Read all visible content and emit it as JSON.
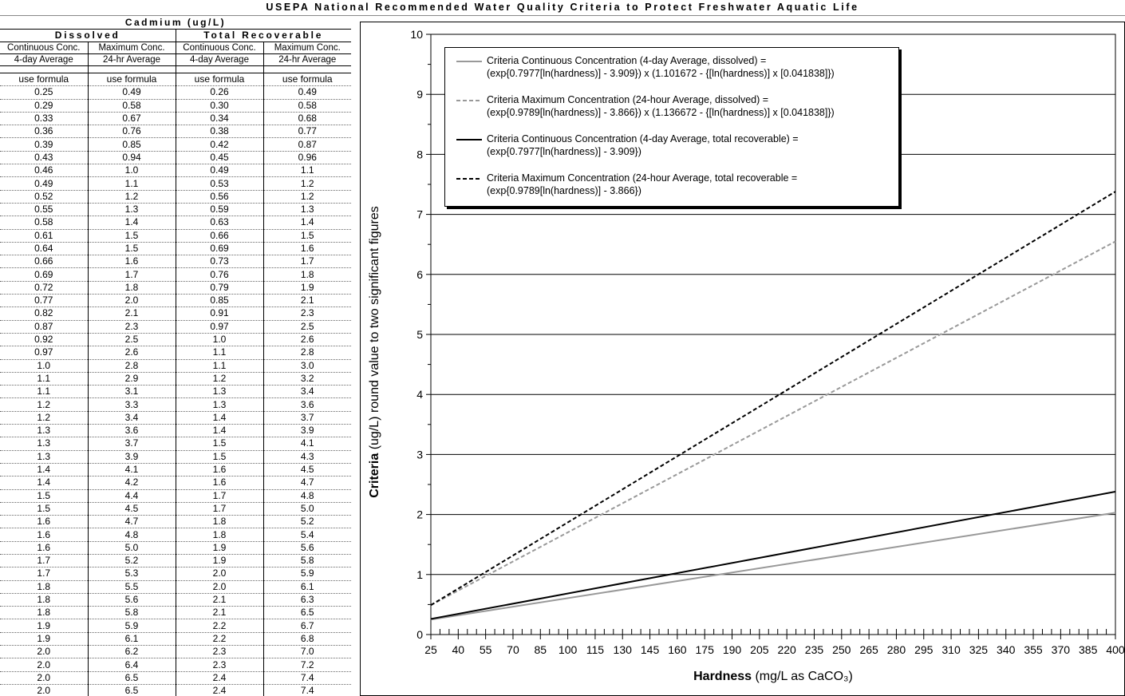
{
  "banner": "USEPA National Recommended Water Quality Criteria to Protect Freshwater Aquatic Life",
  "table": {
    "metal": "Cadmium (ug/L)",
    "groups": [
      "Dissolved",
      "Total Recoverable"
    ],
    "subheaders": [
      [
        "Continuous Conc.",
        "4-day Average"
      ],
      [
        "Maximum Conc.",
        "24-hr Average"
      ],
      [
        "Continuous Conc.",
        "4-day Average"
      ],
      [
        "Maximum Conc.",
        "24-hr Average"
      ]
    ],
    "rows": [
      [
        "use formula",
        "use formula",
        "use formula",
        "use formula"
      ],
      [
        "0.25",
        "0.49",
        "0.26",
        "0.49"
      ],
      [
        "0.29",
        "0.58",
        "0.30",
        "0.58"
      ],
      [
        "0.33",
        "0.67",
        "0.34",
        "0.68"
      ],
      [
        "0.36",
        "0.76",
        "0.38",
        "0.77"
      ],
      [
        "0.39",
        "0.85",
        "0.42",
        "0.87"
      ],
      [
        "0.43",
        "0.94",
        "0.45",
        "0.96"
      ],
      [
        "0.46",
        "1.0",
        "0.49",
        "1.1"
      ],
      [
        "0.49",
        "1.1",
        "0.53",
        "1.2"
      ],
      [
        "0.52",
        "1.2",
        "0.56",
        "1.2"
      ],
      [
        "0.55",
        "1.3",
        "0.59",
        "1.3"
      ],
      [
        "0.58",
        "1.4",
        "0.63",
        "1.4"
      ],
      [
        "0.61",
        "1.5",
        "0.66",
        "1.5"
      ],
      [
        "0.64",
        "1.5",
        "0.69",
        "1.6"
      ],
      [
        "0.66",
        "1.6",
        "0.73",
        "1.7"
      ],
      [
        "0.69",
        "1.7",
        "0.76",
        "1.8"
      ],
      [
        "0.72",
        "1.8",
        "0.79",
        "1.9"
      ],
      [
        "0.77",
        "2.0",
        "0.85",
        "2.1"
      ],
      [
        "0.82",
        "2.1",
        "0.91",
        "2.3"
      ],
      [
        "0.87",
        "2.3",
        "0.97",
        "2.5"
      ],
      [
        "0.92",
        "2.5",
        "1.0",
        "2.6"
      ],
      [
        "0.97",
        "2.6",
        "1.1",
        "2.8"
      ],
      [
        "1.0",
        "2.8",
        "1.1",
        "3.0"
      ],
      [
        "1.1",
        "2.9",
        "1.2",
        "3.2"
      ],
      [
        "1.1",
        "3.1",
        "1.3",
        "3.4"
      ],
      [
        "1.2",
        "3.3",
        "1.3",
        "3.6"
      ],
      [
        "1.2",
        "3.4",
        "1.4",
        "3.7"
      ],
      [
        "1.3",
        "3.6",
        "1.4",
        "3.9"
      ],
      [
        "1.3",
        "3.7",
        "1.5",
        "4.1"
      ],
      [
        "1.3",
        "3.9",
        "1.5",
        "4.3"
      ],
      [
        "1.4",
        "4.1",
        "1.6",
        "4.5"
      ],
      [
        "1.4",
        "4.2",
        "1.6",
        "4.7"
      ],
      [
        "1.5",
        "4.4",
        "1.7",
        "4.8"
      ],
      [
        "1.5",
        "4.5",
        "1.7",
        "5.0"
      ],
      [
        "1.6",
        "4.7",
        "1.8",
        "5.2"
      ],
      [
        "1.6",
        "4.8",
        "1.8",
        "5.4"
      ],
      [
        "1.6",
        "5.0",
        "1.9",
        "5.6"
      ],
      [
        "1.7",
        "5.2",
        "1.9",
        "5.8"
      ],
      [
        "1.7",
        "5.3",
        "2.0",
        "5.9"
      ],
      [
        "1.8",
        "5.5",
        "2.0",
        "6.1"
      ],
      [
        "1.8",
        "5.6",
        "2.1",
        "6.3"
      ],
      [
        "1.8",
        "5.8",
        "2.1",
        "6.5"
      ],
      [
        "1.9",
        "5.9",
        "2.2",
        "6.7"
      ],
      [
        "1.9",
        "6.1",
        "2.2",
        "6.8"
      ],
      [
        "2.0",
        "6.2",
        "2.3",
        "7.0"
      ],
      [
        "2.0",
        "6.4",
        "2.3",
        "7.2"
      ],
      [
        "2.0",
        "6.5",
        "2.4",
        "7.4"
      ],
      [
        "2.0",
        "6.5",
        "2.4",
        "7.4"
      ]
    ]
  },
  "chart_data": {
    "type": "line",
    "xlabel_bold": "Hardness",
    "xlabel_rest": " (mg/L as CaCO₃)",
    "ylabel_bold": "Criteria",
    "ylabel_rest": " (ug/L) round value to two significant figures",
    "xlim": [
      25,
      400
    ],
    "ylim": [
      0,
      10
    ],
    "x_ticks": [
      "25",
      "40",
      "55",
      "70",
      "85",
      "100",
      "115",
      "130",
      "145",
      "160",
      "175",
      "190",
      "205",
      "220",
      "235",
      "250",
      "265",
      "280",
      "295",
      "310",
      "325",
      "340",
      "355",
      "370",
      "385",
      "400"
    ],
    "y_ticks": [
      "0",
      "1",
      "2",
      "3",
      "4",
      "5",
      "6",
      "7",
      "8",
      "9",
      "10"
    ],
    "grid": "horizontal major",
    "legend_position": "top-left",
    "x": [
      25,
      400
    ],
    "series": [
      {
        "name": "Criteria Continuous Concentration (4-day Average, dissolved) = (exp{0.7977[ln(hardness)] - 3.909}) x (1.101672 - {[ln(hardness)] x [0.041838]})",
        "name_line1": "Criteria Continuous Concentration (4-day Average, dissolved) =",
        "name_line2": "(exp{0.7977[ln(hardness)] - 3.909}) x (1.101672 - {[ln(hardness)] x [0.041838]})",
        "style": "solid",
        "color": "#999999",
        "values": [
          0.25,
          2.03
        ]
      },
      {
        "name": "Criteria Maximum Concentration (24-hour Average, dissolved) = (exp{0.9789[ln(hardness)] - 3.866}) x (1.136672 - {[ln(hardness)] x [0.041838]})",
        "name_line1": "Criteria Maximum Concentration (24-hour Average, dissolved) =",
        "name_line2": "(exp{0.9789[ln(hardness)] - 3.866}) x (1.136672 - {[ln(hardness)] x [0.041838]})",
        "style": "dashed",
        "color": "#999999",
        "values": [
          0.49,
          6.55
        ]
      },
      {
        "name": "Criteria Continuous Concentration (4-day Average, total recoverable) = (exp{0.7977[ln(hardness)] - 3.909})",
        "name_line1": "Criteria Continuous Concentration (4-day Average, total recoverable) =",
        "name_line2": "(exp{0.7977[ln(hardness)] - 3.909})",
        "style": "solid",
        "color": "#000000",
        "values": [
          0.26,
          2.38
        ]
      },
      {
        "name": "Criteria Maximum Concentration (24-hour Average, total recoverable = (exp{0.9789[ln(hardness)] - 3.866})",
        "name_line1": "Criteria Maximum Concentration (24-hour Average, total recoverable =",
        "name_line2": "(exp{0.9789[ln(hardness)] - 3.866})",
        "style": "dashed",
        "color": "#000000",
        "values": [
          0.49,
          7.38
        ]
      }
    ]
  }
}
